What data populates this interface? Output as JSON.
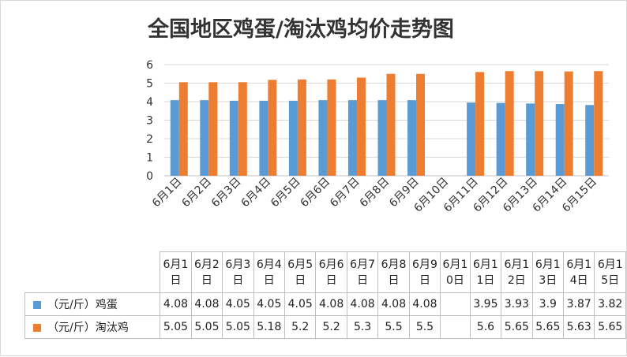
{
  "chart_data": {
    "type": "bar",
    "title": "全国地区鸡蛋/淘汰鸡均价走势图",
    "categories": [
      "6月1日",
      "6月2日",
      "6月3日",
      "6月4日",
      "6月5日",
      "6月6日",
      "6月7日",
      "6月8日",
      "6月9日",
      "6月10日",
      "6月11日",
      "6月12日",
      "6月13日",
      "6月14日",
      "6月15日"
    ],
    "table_headers": [
      "6月1日",
      "6月2日",
      "6月3日",
      "6月4日",
      "6月5日",
      "6月6日",
      "6月7日",
      "6月8日",
      "6月9日",
      "6月1\n0日",
      "6月1\n1日",
      "6月1\n2日",
      "6月1\n3日",
      "6月1\n4日",
      "6月1\n5日"
    ],
    "series": [
      {
        "name": "（元/斤）鸡蛋",
        "color": "#5b9bd5",
        "values": [
          4.08,
          4.08,
          4.05,
          4.05,
          4.05,
          4.08,
          4.08,
          4.08,
          4.08,
          null,
          3.95,
          3.93,
          3.9,
          3.87,
          3.82
        ]
      },
      {
        "name": "（元/斤）淘汰鸡",
        "color": "#ed7d31",
        "values": [
          5.05,
          5.05,
          5.05,
          5.18,
          5.2,
          5.2,
          5.3,
          5.5,
          5.5,
          null,
          5.6,
          5.65,
          5.65,
          5.63,
          5.65
        ]
      }
    ],
    "yticks": [
      "0",
      "1",
      "2",
      "3",
      "4",
      "5",
      "6"
    ],
    "ylim": [
      0,
      6
    ],
    "grid": true,
    "legend": "data-table"
  }
}
